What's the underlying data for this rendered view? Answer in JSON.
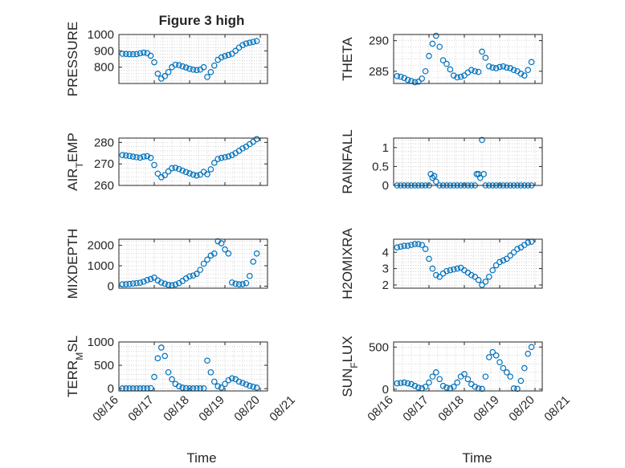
{
  "figure": {
    "title": "Figure 3 high",
    "xlabel": "Time"
  },
  "colors": {
    "marker": "#0072BD",
    "axis": "#262626",
    "grid": "#b8b8b8",
    "box_bg": "#ffffff"
  },
  "chart_data": [
    {
      "type": "scatter",
      "ylabel": "PRESSURE",
      "ylim": [
        700,
        1000
      ],
      "yticks": [
        800,
        900,
        1000
      ],
      "grid": true,
      "xlim": [
        0,
        4.2
      ],
      "xtick_labels": [],
      "series": [
        {
          "x": [
            0.1,
            0.2,
            0.3,
            0.4,
            0.5,
            0.6,
            0.7,
            0.8,
            0.9,
            1.0,
            1.1,
            1.2,
            1.3,
            1.4,
            1.5,
            1.6,
            1.7,
            1.8,
            1.9,
            2.0,
            2.1,
            2.2,
            2.3,
            2.4,
            2.5,
            2.6,
            2.7,
            2.8,
            2.9,
            3.0,
            3.1,
            3.2,
            3.3,
            3.4,
            3.5,
            3.6,
            3.7,
            3.8,
            3.9
          ],
          "y": [
            882,
            881,
            880,
            879,
            880,
            885,
            889,
            886,
            870,
            830,
            760,
            730,
            745,
            770,
            800,
            815,
            812,
            805,
            798,
            790,
            785,
            782,
            785,
            800,
            740,
            770,
            810,
            845,
            860,
            868,
            875,
            882,
            900,
            920,
            935,
            945,
            950,
            955,
            960
          ]
        }
      ]
    },
    {
      "type": "scatter",
      "ylabel": "THETA",
      "ylim": [
        283,
        291
      ],
      "yticks": [
        285,
        290
      ],
      "grid": true,
      "xlim": [
        0,
        4.2
      ],
      "xtick_labels": [],
      "series": [
        {
          "x": [
            0.1,
            0.2,
            0.3,
            0.4,
            0.5,
            0.6,
            0.7,
            0.8,
            0.9,
            1.0,
            1.1,
            1.2,
            1.3,
            1.4,
            1.5,
            1.6,
            1.7,
            1.8,
            1.9,
            2.0,
            2.1,
            2.2,
            2.3,
            2.4,
            2.5,
            2.6,
            2.7,
            2.8,
            2.9,
            3.0,
            3.1,
            3.2,
            3.3,
            3.4,
            3.5,
            3.6,
            3.7,
            3.8,
            3.9
          ],
          "y": [
            284.2,
            284.1,
            283.9,
            283.6,
            283.4,
            283.2,
            283.3,
            283.8,
            285.0,
            287.5,
            289.5,
            290.8,
            289.0,
            286.8,
            286.2,
            285.3,
            284.3,
            284.0,
            284.1,
            284.3,
            284.8,
            285.2,
            285.0,
            284.9,
            288.2,
            287.2,
            285.8,
            285.6,
            285.5,
            285.7,
            285.8,
            285.6,
            285.5,
            285.2,
            285.0,
            284.6,
            284.3,
            285.2,
            286.5
          ]
        }
      ]
    },
    {
      "type": "scatter",
      "ylabel": "AIR_TEMP",
      "ylim": [
        260,
        282
      ],
      "yticks": [
        260,
        270,
        280
      ],
      "grid": true,
      "xlim": [
        0,
        4.2
      ],
      "xtick_labels": [],
      "series": [
        {
          "x": [
            0.1,
            0.2,
            0.3,
            0.4,
            0.5,
            0.6,
            0.7,
            0.8,
            0.9,
            1.0,
            1.1,
            1.2,
            1.3,
            1.4,
            1.5,
            1.6,
            1.7,
            1.8,
            1.9,
            2.0,
            2.1,
            2.2,
            2.3,
            2.4,
            2.5,
            2.6,
            2.7,
            2.8,
            2.9,
            3.0,
            3.1,
            3.2,
            3.3,
            3.4,
            3.5,
            3.6,
            3.7,
            3.8,
            3.9
          ],
          "y": [
            274.1,
            273.9,
            273.7,
            273.4,
            273.1,
            272.9,
            273.4,
            273.6,
            272.8,
            269.5,
            265.5,
            263.8,
            264.8,
            266.5,
            268.0,
            268.2,
            267.6,
            266.9,
            266.2,
            265.6,
            265.0,
            264.6,
            265.0,
            266.3,
            265.2,
            267.5,
            270.5,
            272.3,
            272.8,
            273.1,
            273.5,
            274.1,
            275.0,
            276.1,
            277.2,
            278.0,
            279.2,
            280.3,
            281.5
          ]
        }
      ]
    },
    {
      "type": "scatter",
      "ylabel": "RAINFALL",
      "ylim": [
        0,
        1.25
      ],
      "yticks": [
        0,
        0.5,
        1
      ],
      "grid": true,
      "xlim": [
        0,
        4.2
      ],
      "xtick_labels": [],
      "series": [
        {
          "x": [
            0.1,
            0.2,
            0.3,
            0.4,
            0.5,
            0.6,
            0.7,
            0.8,
            0.9,
            1.0,
            1.05,
            1.1,
            1.15,
            1.2,
            1.3,
            1.4,
            1.5,
            1.6,
            1.7,
            1.8,
            1.9,
            2.0,
            2.1,
            2.2,
            2.3,
            2.35,
            2.4,
            2.45,
            2.5,
            2.55,
            2.6,
            2.7,
            2.8,
            2.9,
            3.0,
            3.1,
            3.2,
            3.3,
            3.4,
            3.5,
            3.6,
            3.7,
            3.8,
            3.9
          ],
          "y": [
            0,
            0,
            0,
            0,
            0,
            0,
            0,
            0,
            0,
            0,
            0.3,
            0.2,
            0.25,
            0.1,
            0,
            0,
            0,
            0,
            0,
            0,
            0,
            0,
            0,
            0,
            0,
            0.3,
            0.3,
            0.2,
            1.2,
            0.3,
            0,
            0,
            0,
            0,
            0,
            0,
            0,
            0,
            0,
            0,
            0,
            0,
            0,
            0
          ]
        }
      ]
    },
    {
      "type": "scatter",
      "ylabel": "MIXDEPTH",
      "ylim": [
        -100,
        2300
      ],
      "yticks": [
        0,
        1000,
        2000
      ],
      "grid": true,
      "xlim": [
        0,
        4.2
      ],
      "xtick_labels": [],
      "series": [
        {
          "x": [
            0.1,
            0.2,
            0.3,
            0.4,
            0.5,
            0.6,
            0.7,
            0.8,
            0.9,
            1.0,
            1.1,
            1.2,
            1.3,
            1.4,
            1.5,
            1.6,
            1.7,
            1.8,
            1.9,
            2.0,
            2.1,
            2.2,
            2.3,
            2.4,
            2.5,
            2.6,
            2.7,
            2.8,
            2.9,
            3.0,
            3.1,
            3.2,
            3.3,
            3.4,
            3.5,
            3.6,
            3.7,
            3.8,
            3.9
          ],
          "y": [
            90,
            95,
            110,
            130,
            150,
            170,
            220,
            300,
            350,
            420,
            280,
            180,
            120,
            60,
            40,
            80,
            150,
            250,
            380,
            480,
            520,
            600,
            800,
            1100,
            1300,
            1500,
            1600,
            2200,
            2100,
            1800,
            1600,
            180,
            120,
            90,
            100,
            150,
            500,
            1200,
            1600
          ]
        }
      ]
    },
    {
      "type": "scatter",
      "ylabel": "H2OMIXRA",
      "ylim": [
        1.8,
        4.8
      ],
      "yticks": [
        2,
        3,
        4
      ],
      "grid": true,
      "xlim": [
        0,
        4.2
      ],
      "xtick_labels": [],
      "series": [
        {
          "x": [
            0.1,
            0.2,
            0.3,
            0.4,
            0.5,
            0.6,
            0.7,
            0.8,
            0.9,
            1.0,
            1.1,
            1.2,
            1.3,
            1.4,
            1.5,
            1.6,
            1.7,
            1.8,
            1.9,
            2.0,
            2.1,
            2.2,
            2.3,
            2.4,
            2.5,
            2.6,
            2.7,
            2.8,
            2.9,
            3.0,
            3.1,
            3.2,
            3.3,
            3.4,
            3.5,
            3.6,
            3.7,
            3.8,
            3.9
          ],
          "y": [
            4.3,
            4.35,
            4.4,
            4.4,
            4.45,
            4.5,
            4.5,
            4.45,
            4.2,
            3.6,
            3.0,
            2.6,
            2.5,
            2.7,
            2.85,
            2.9,
            2.95,
            3.0,
            3.05,
            2.9,
            2.75,
            2.6,
            2.5,
            2.3,
            2.0,
            2.2,
            2.5,
            2.9,
            3.2,
            3.4,
            3.5,
            3.6,
            3.8,
            4.0,
            4.2,
            4.3,
            4.45,
            4.6,
            4.65
          ]
        }
      ]
    },
    {
      "type": "scatter",
      "ylabel": "TERR_MSL",
      "ylim": [
        -50,
        1000
      ],
      "yticks": [
        0,
        500,
        1000
      ],
      "grid": true,
      "xlim": [
        0,
        4.2
      ],
      "xtick_labels": [
        "08/16",
        "08/17",
        "08/18",
        "08/19",
        "08/20",
        "08/21"
      ],
      "xticks": [
        0,
        1,
        2,
        3,
        4,
        5
      ],
      "series": [
        {
          "x": [
            0.1,
            0.2,
            0.3,
            0.4,
            0.5,
            0.6,
            0.7,
            0.8,
            0.9,
            1.0,
            1.1,
            1.2,
            1.3,
            1.4,
            1.5,
            1.6,
            1.7,
            1.8,
            1.9,
            2.0,
            2.1,
            2.2,
            2.3,
            2.4,
            2.5,
            2.6,
            2.7,
            2.8,
            2.9,
            3.0,
            3.1,
            3.2,
            3.3,
            3.4,
            3.5,
            3.6,
            3.7,
            3.8,
            3.9
          ],
          "y": [
            5,
            5,
            5,
            5,
            5,
            5,
            5,
            5,
            10,
            250,
            650,
            880,
            700,
            350,
            200,
            100,
            50,
            20,
            10,
            5,
            5,
            5,
            5,
            5,
            600,
            350,
            150,
            50,
            20,
            100,
            180,
            220,
            200,
            150,
            120,
            90,
            60,
            40,
            20
          ]
        }
      ]
    },
    {
      "type": "scatter",
      "ylabel": "SUN_FLUX",
      "ylim": [
        -20,
        560
      ],
      "yticks": [
        0,
        500
      ],
      "grid": true,
      "xlim": [
        0,
        4.2
      ],
      "xtick_labels": [
        "08/16",
        "08/17",
        "08/18",
        "08/19",
        "08/20",
        "08/21"
      ],
      "xticks": [
        0,
        1,
        2,
        3,
        4,
        5
      ],
      "series": [
        {
          "x": [
            0.1,
            0.2,
            0.3,
            0.4,
            0.5,
            0.6,
            0.7,
            0.8,
            0.9,
            1.0,
            1.1,
            1.2,
            1.3,
            1.4,
            1.5,
            1.6,
            1.7,
            1.8,
            1.9,
            2.0,
            2.1,
            2.2,
            2.3,
            2.4,
            2.5,
            2.6,
            2.7,
            2.8,
            2.9,
            3.0,
            3.1,
            3.2,
            3.3,
            3.4,
            3.5,
            3.6,
            3.7,
            3.8,
            3.9
          ],
          "y": [
            70,
            75,
            80,
            70,
            60,
            40,
            20,
            10,
            30,
            80,
            150,
            200,
            120,
            40,
            20,
            10,
            30,
            80,
            150,
            180,
            120,
            60,
            30,
            10,
            5,
            150,
            380,
            440,
            400,
            320,
            250,
            200,
            150,
            10,
            5,
            100,
            250,
            420,
            500
          ]
        }
      ]
    }
  ]
}
